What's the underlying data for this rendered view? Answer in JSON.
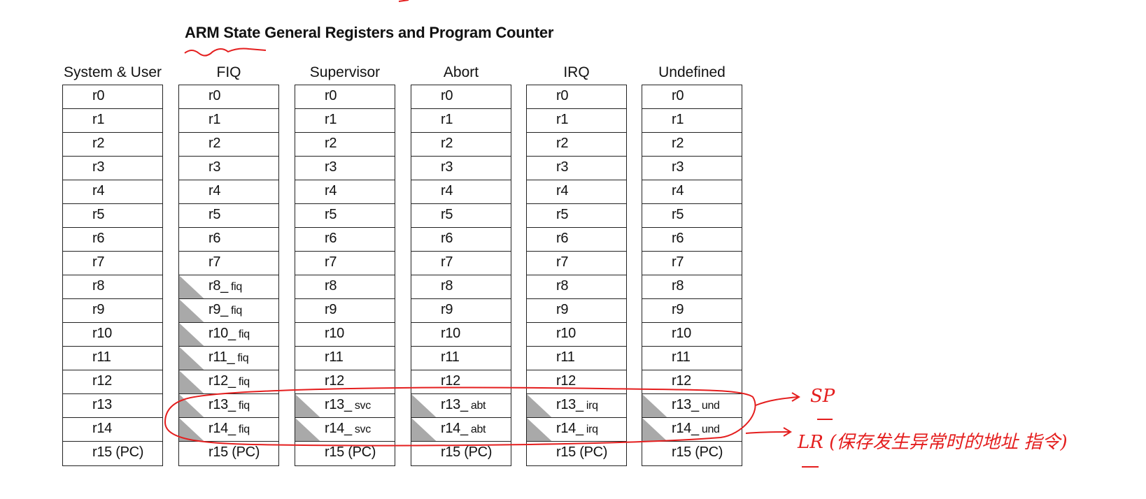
{
  "title": "ARM State General Registers and Program Counter",
  "annotation_colors": {
    "ink": "#e41e1e",
    "banked_fill": "#a9a9a9"
  },
  "modes": [
    {
      "name": "System & User",
      "registers": [
        {
          "label": "r0"
        },
        {
          "label": "r1"
        },
        {
          "label": "r2"
        },
        {
          "label": "r3"
        },
        {
          "label": "r4"
        },
        {
          "label": "r5"
        },
        {
          "label": "r6"
        },
        {
          "label": "r7"
        },
        {
          "label": "r8"
        },
        {
          "label": "r9"
        },
        {
          "label": "r10"
        },
        {
          "label": "r11"
        },
        {
          "label": "r12"
        },
        {
          "label": "r13"
        },
        {
          "label": "r14"
        },
        {
          "label": "r15 (PC)"
        }
      ]
    },
    {
      "name": "FIQ",
      "registers": [
        {
          "label": "r0"
        },
        {
          "label": "r1"
        },
        {
          "label": "r2"
        },
        {
          "label": "r3"
        },
        {
          "label": "r4"
        },
        {
          "label": "r5"
        },
        {
          "label": "r6"
        },
        {
          "label": "r7"
        },
        {
          "label": "r8_",
          "suffix": "fiq",
          "banked": true
        },
        {
          "label": "r9_",
          "suffix": "fiq",
          "banked": true
        },
        {
          "label": "r10_",
          "suffix": "fiq",
          "banked": true
        },
        {
          "label": "r11_",
          "suffix": "fiq",
          "banked": true
        },
        {
          "label": "r12_",
          "suffix": "fiq",
          "banked": true
        },
        {
          "label": "r13_",
          "suffix": "fiq",
          "banked": true
        },
        {
          "label": "r14_",
          "suffix": "fiq",
          "banked": true
        },
        {
          "label": "r15 (PC)"
        }
      ]
    },
    {
      "name": "Supervisor",
      "registers": [
        {
          "label": "r0"
        },
        {
          "label": "r1"
        },
        {
          "label": "r2"
        },
        {
          "label": "r3"
        },
        {
          "label": "r4"
        },
        {
          "label": "r5"
        },
        {
          "label": "r6"
        },
        {
          "label": "r7"
        },
        {
          "label": "r8"
        },
        {
          "label": "r9"
        },
        {
          "label": "r10"
        },
        {
          "label": "r11"
        },
        {
          "label": "r12"
        },
        {
          "label": "r13_",
          "suffix": "svc",
          "banked": true
        },
        {
          "label": "r14_",
          "suffix": "svc",
          "banked": true
        },
        {
          "label": "r15 (PC)"
        }
      ]
    },
    {
      "name": "Abort",
      "registers": [
        {
          "label": "r0"
        },
        {
          "label": "r1"
        },
        {
          "label": "r2"
        },
        {
          "label": "r3"
        },
        {
          "label": "r4"
        },
        {
          "label": "r5"
        },
        {
          "label": "r6"
        },
        {
          "label": "r7"
        },
        {
          "label": "r8"
        },
        {
          "label": "r9"
        },
        {
          "label": "r10"
        },
        {
          "label": "r11"
        },
        {
          "label": "r12"
        },
        {
          "label": "r13_",
          "suffix": "abt",
          "banked": true
        },
        {
          "label": "r14_",
          "suffix": "abt",
          "banked": true
        },
        {
          "label": "r15 (PC)"
        }
      ]
    },
    {
      "name": "IRQ",
      "registers": [
        {
          "label": "r0"
        },
        {
          "label": "r1"
        },
        {
          "label": "r2"
        },
        {
          "label": "r3"
        },
        {
          "label": "r4"
        },
        {
          "label": "r5"
        },
        {
          "label": "r6"
        },
        {
          "label": "r7"
        },
        {
          "label": "r8"
        },
        {
          "label": "r9"
        },
        {
          "label": "r10"
        },
        {
          "label": "r11"
        },
        {
          "label": "r12"
        },
        {
          "label": "r13_",
          "suffix": "irq",
          "banked": true
        },
        {
          "label": "r14_",
          "suffix": "irq",
          "banked": true
        },
        {
          "label": "r15 (PC)"
        }
      ]
    },
    {
      "name": "Undefined",
      "registers": [
        {
          "label": "r0"
        },
        {
          "label": "r1"
        },
        {
          "label": "r2"
        },
        {
          "label": "r3"
        },
        {
          "label": "r4"
        },
        {
          "label": "r5"
        },
        {
          "label": "r6"
        },
        {
          "label": "r7"
        },
        {
          "label": "r8"
        },
        {
          "label": "r9"
        },
        {
          "label": "r10"
        },
        {
          "label": "r11"
        },
        {
          "label": "r12"
        },
        {
          "label": "r13_",
          "suffix": "und",
          "banked": true
        },
        {
          "label": "r14_",
          "suffix": "und",
          "banked": true
        },
        {
          "label": "r15 (PC)"
        }
      ]
    }
  ],
  "annotations": {
    "r13_note": "SP",
    "r14_note": "LR (保存发生异常时的地址 指令)"
  }
}
